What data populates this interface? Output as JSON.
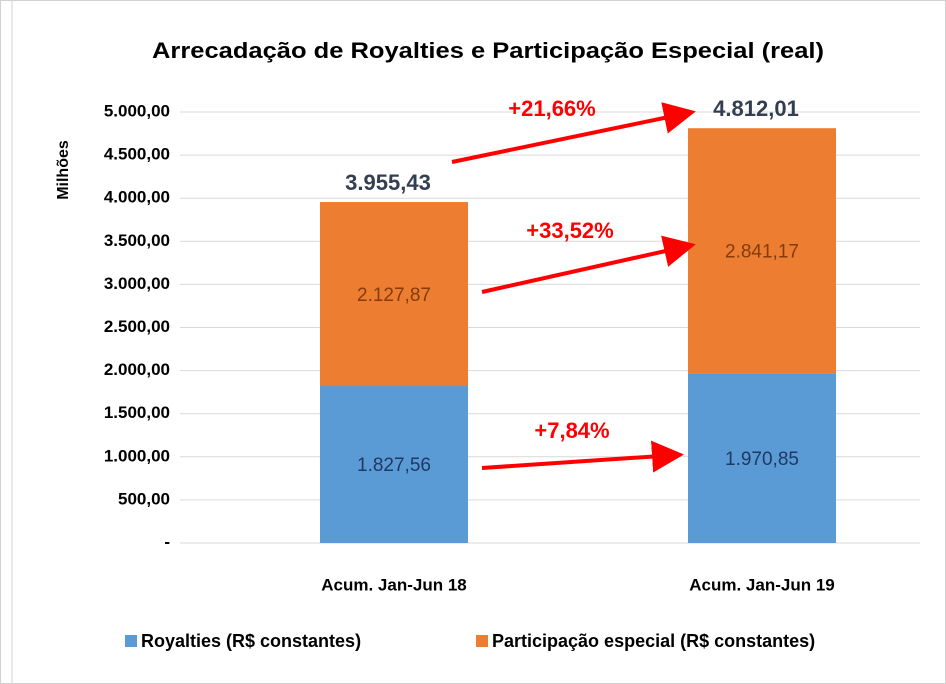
{
  "chart_data": {
    "type": "stacked-bar",
    "title": "Arrecadação de Royalties e Participação Especial (real)",
    "y_label": "Milhões",
    "categories": [
      "Acum. Jan-Jun 18",
      "Acum. Jan-Jun 19"
    ],
    "series": [
      {
        "name": "Royalties (R$ constantes)",
        "color": "#5b9bd5",
        "label_color": "#1f3864",
        "values": [
          1827.56,
          1970.85
        ],
        "value_labels": [
          "1.827,56",
          "1.970,85"
        ]
      },
      {
        "name": "Participação especial (R$ constantes)",
        "color": "#ed7d31",
        "label_color": "#843c0c",
        "values": [
          2127.87,
          2841.17
        ],
        "value_labels": [
          "2.127,87",
          "2.841,17"
        ]
      }
    ],
    "totals": {
      "values": [
        3955.43,
        4812.01
      ],
      "value_labels": [
        "3.955,43",
        "4.812,01"
      ]
    },
    "annotations": [
      "+21,66%",
      "+33,52%",
      "+7,84%"
    ],
    "ylim": [
      0,
      5000
    ],
    "yticks": [
      {
        "value": 0,
        "label": "-"
      },
      {
        "value": 500,
        "label": "500,00"
      },
      {
        "value": 1000,
        "label": "1.000,00"
      },
      {
        "value": 1500,
        "label": "1.500,00"
      },
      {
        "value": 2000,
        "label": "2.000,00"
      },
      {
        "value": 2500,
        "label": "2.500,00"
      },
      {
        "value": 3000,
        "label": "3.000,00"
      },
      {
        "value": 3500,
        "label": "3.500,00"
      },
      {
        "value": 4000,
        "label": "4.000,00"
      },
      {
        "value": 4500,
        "label": "4.500,00"
      },
      {
        "value": 5000,
        "label": "5.000,00"
      }
    ],
    "grid": true,
    "legend": "bottom"
  }
}
